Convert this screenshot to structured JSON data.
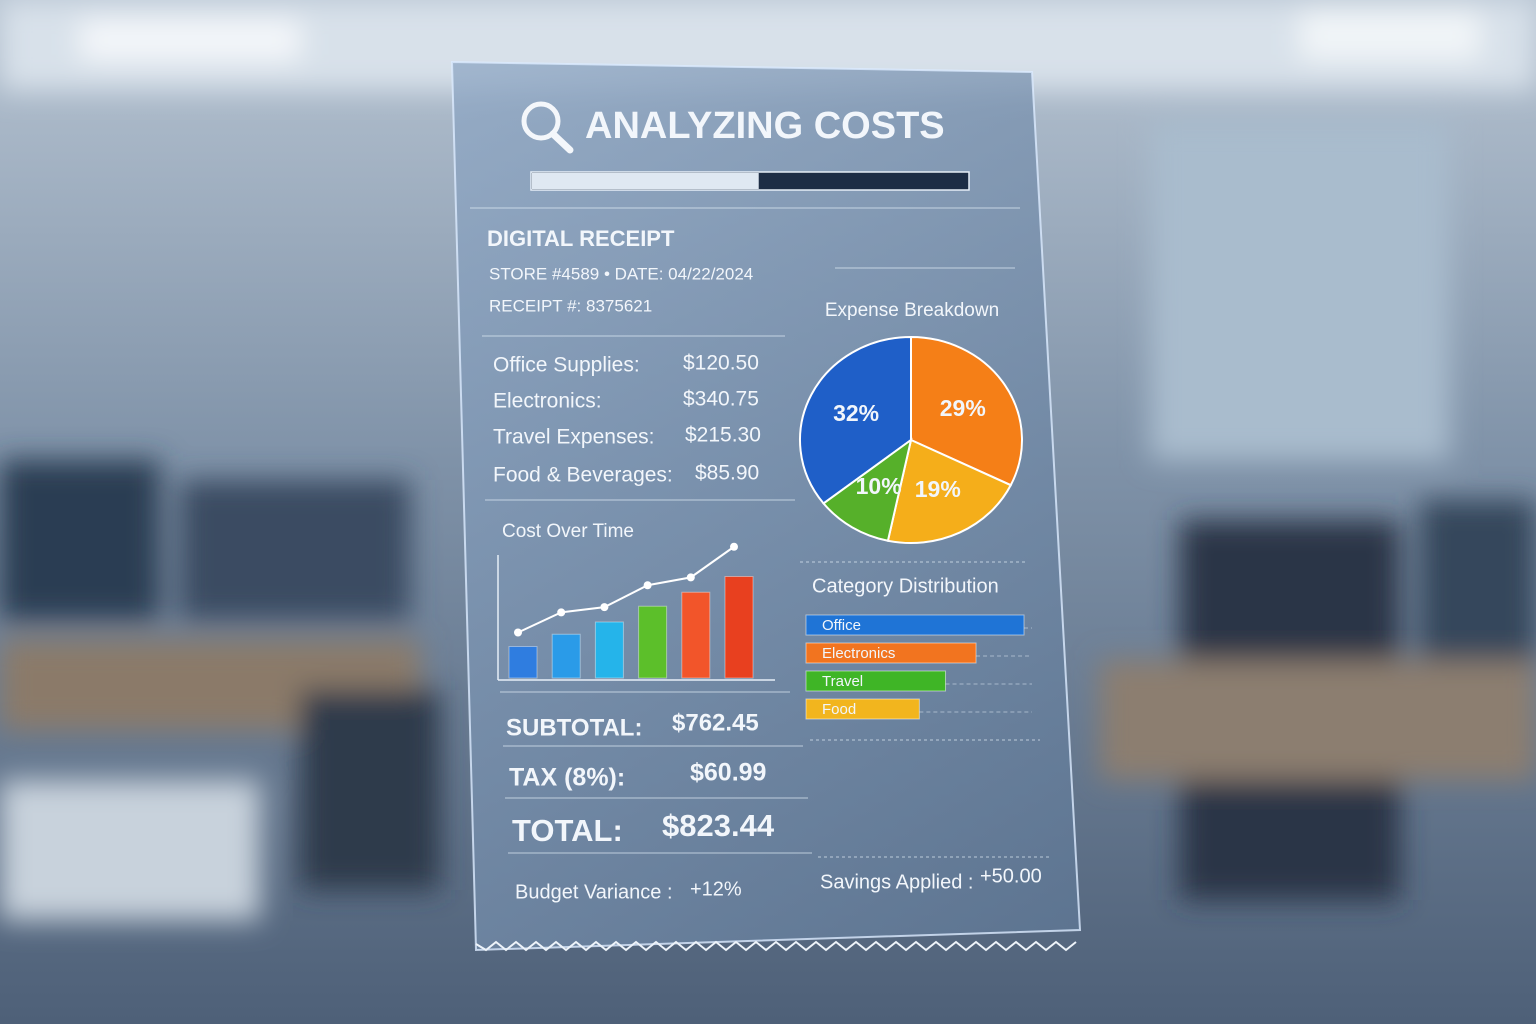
{
  "header": {
    "title": "ANALYZING COSTS",
    "progress": 52
  },
  "receipt": {
    "title": "DIGITAL RECEIPT",
    "store_line": "STORE #4589 • DATE: 04/22/2024",
    "receipt_line": "RECEIPT #: 8375621",
    "items": [
      {
        "label": "Office Supplies:",
        "amount": "$120.50"
      },
      {
        "label": "Electronics:",
        "amount": "$340.75"
      },
      {
        "label": "Travel Expenses:",
        "amount": "$215.30"
      },
      {
        "label": "Food & Beverages:",
        "amount": "$85.90"
      }
    ],
    "totals": [
      {
        "label": "SUBTOTAL:",
        "amount": "$762.45"
      },
      {
        "label": "TAX (8%):",
        "amount": "$60.99"
      },
      {
        "label": "TOTAL:",
        "amount": "$823.44"
      }
    ],
    "budget_variance": {
      "label": "Budget Variance :",
      "value": "+12%"
    },
    "savings": {
      "label": "Savings Applied :",
      "value": "+50.00"
    }
  },
  "charts": [
    {
      "type": "bar-line",
      "title": "Cost Over Time",
      "ylim": [
        0,
        160
      ],
      "bars": {
        "values": [
          36,
          50,
          64,
          82,
          98,
          116
        ],
        "colors": [
          "#2f7de0",
          "#2a9be8",
          "#25b4ea",
          "#5cbf2a",
          "#f2552a",
          "#e8401f"
        ]
      },
      "line": {
        "values": [
          52,
          75,
          81,
          106,
          115,
          150
        ],
        "color": "#ffffff"
      }
    },
    {
      "type": "pie",
      "title": "Expense Breakdown",
      "values": [
        32,
        29,
        19,
        10
      ],
      "value_labels": [
        "32%",
        "29%",
        "19%",
        "10%"
      ],
      "colors": [
        "#1f5fc8",
        "#f57f17",
        "#f5ae1a",
        "#56b02a"
      ]
    },
    {
      "type": "hbar",
      "title": "Category Distribution",
      "xlim": [
        0,
        100
      ],
      "categories": [
        "Office",
        "Electronics",
        "Travel",
        "Food"
      ],
      "values": [
        100,
        78,
        64,
        52
      ],
      "colors": [
        "#1f74d6",
        "#f2741f",
        "#3fb526",
        "#f2b51e"
      ]
    }
  ]
}
